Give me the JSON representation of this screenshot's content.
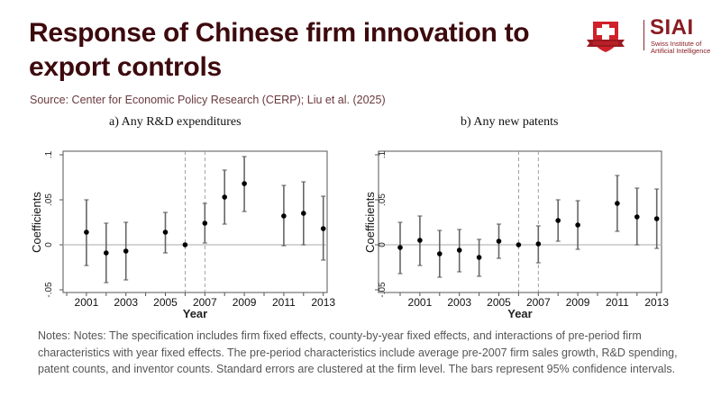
{
  "header": {
    "title_line1": "Response of Chinese firm innovation to",
    "title_line2": "export controls",
    "source": "Source: Center for Economic Policy Research (CERP); Liu et al. (2025)"
  },
  "logo": {
    "brand": "SIAI",
    "subtitle_line1": "Swiss Institute of",
    "subtitle_line2": "Artificial Intelligence",
    "shield_color": "#d0202a",
    "brand_color": "#8a1c22"
  },
  "notes": "Notes: Notes: The specification includes firm fixed effects, county-by-year fixed effects, and interactions of pre-period firm characteristics with year fixed effects. The pre-period characteristics include average pre-2007 firm sales growth, R&D spending, patent counts, and inventor counts. Standard errors are clustered at the firm level. The bars represent 95% confidence intervals.",
  "chart_data": [
    {
      "type": "scatter",
      "title": "a) Any R&D expenditures",
      "xlabel": "Year",
      "ylabel": "Coefficients",
      "xlim": [
        2000,
        2013
      ],
      "ylim": [
        -0.05,
        0.1
      ],
      "x_ticks": [
        2001,
        2003,
        2005,
        2007,
        2009,
        2011,
        2013
      ],
      "x_minor_ticks": [
        2000,
        2002,
        2004,
        2006,
        2008,
        2010,
        2012
      ],
      "y_ticks": [
        -0.05,
        0,
        0.05,
        0.1
      ],
      "y_tick_labels": [
        "-.05",
        "0",
        ".05",
        ".1"
      ],
      "reference_lines": {
        "horizontal": 0,
        "vertical_dashed": [
          2006,
          2007
        ]
      },
      "grid": false,
      "points": [
        {
          "x": 2001,
          "y": 0.014,
          "lo": -0.023,
          "hi": 0.05
        },
        {
          "x": 2002,
          "y": -0.009,
          "lo": -0.042,
          "hi": 0.024
        },
        {
          "x": 2003,
          "y": -0.007,
          "lo": -0.039,
          "hi": 0.025
        },
        {
          "x": 2005,
          "y": 0.014,
          "lo": -0.009,
          "hi": 0.036
        },
        {
          "x": 2006,
          "y": 0.0,
          "lo": null,
          "hi": null
        },
        {
          "x": 2007,
          "y": 0.024,
          "lo": 0.002,
          "hi": 0.046
        },
        {
          "x": 2008,
          "y": 0.053,
          "lo": 0.023,
          "hi": 0.083
        },
        {
          "x": 2009,
          "y": 0.068,
          "lo": 0.037,
          "hi": 0.098
        },
        {
          "x": 2011,
          "y": 0.032,
          "lo": -0.001,
          "hi": 0.066
        },
        {
          "x": 2012,
          "y": 0.035,
          "lo": 0.0,
          "hi": 0.07
        },
        {
          "x": 2013,
          "y": 0.018,
          "lo": -0.017,
          "hi": 0.054
        }
      ]
    },
    {
      "type": "scatter",
      "title": "b) Any new patents",
      "xlabel": "Year",
      "ylabel": "Coefficients",
      "xlim": [
        2000,
        2013
      ],
      "ylim": [
        -0.05,
        0.1
      ],
      "x_ticks": [
        2001,
        2003,
        2005,
        2007,
        2009,
        2011,
        2013
      ],
      "x_minor_ticks": [
        2000,
        2002,
        2004,
        2006,
        2008,
        2010,
        2012
      ],
      "y_ticks": [
        -0.05,
        0,
        0.05,
        0.1
      ],
      "y_tick_labels": [
        "-.05",
        "0",
        ".05",
        ".1"
      ],
      "reference_lines": {
        "horizontal": 0,
        "vertical_dashed": [
          2006,
          2007
        ]
      },
      "grid": false,
      "points": [
        {
          "x": 2000,
          "y": -0.003,
          "lo": -0.032,
          "hi": 0.025
        },
        {
          "x": 2001,
          "y": 0.005,
          "lo": -0.023,
          "hi": 0.032
        },
        {
          "x": 2002,
          "y": -0.01,
          "lo": -0.036,
          "hi": 0.016
        },
        {
          "x": 2003,
          "y": -0.006,
          "lo": -0.03,
          "hi": 0.017
        },
        {
          "x": 2004,
          "y": -0.014,
          "lo": -0.035,
          "hi": 0.006
        },
        {
          "x": 2005,
          "y": 0.004,
          "lo": -0.015,
          "hi": 0.023
        },
        {
          "x": 2006,
          "y": 0.0,
          "lo": null,
          "hi": null
        },
        {
          "x": 2007,
          "y": 0.001,
          "lo": -0.02,
          "hi": 0.021
        },
        {
          "x": 2008,
          "y": 0.027,
          "lo": 0.004,
          "hi": 0.05
        },
        {
          "x": 2009,
          "y": 0.022,
          "lo": -0.005,
          "hi": 0.049
        },
        {
          "x": 2011,
          "y": 0.046,
          "lo": 0.015,
          "hi": 0.077
        },
        {
          "x": 2012,
          "y": 0.031,
          "lo": 0.0,
          "hi": 0.063
        },
        {
          "x": 2013,
          "y": 0.029,
          "lo": -0.004,
          "hi": 0.062
        }
      ]
    }
  ]
}
